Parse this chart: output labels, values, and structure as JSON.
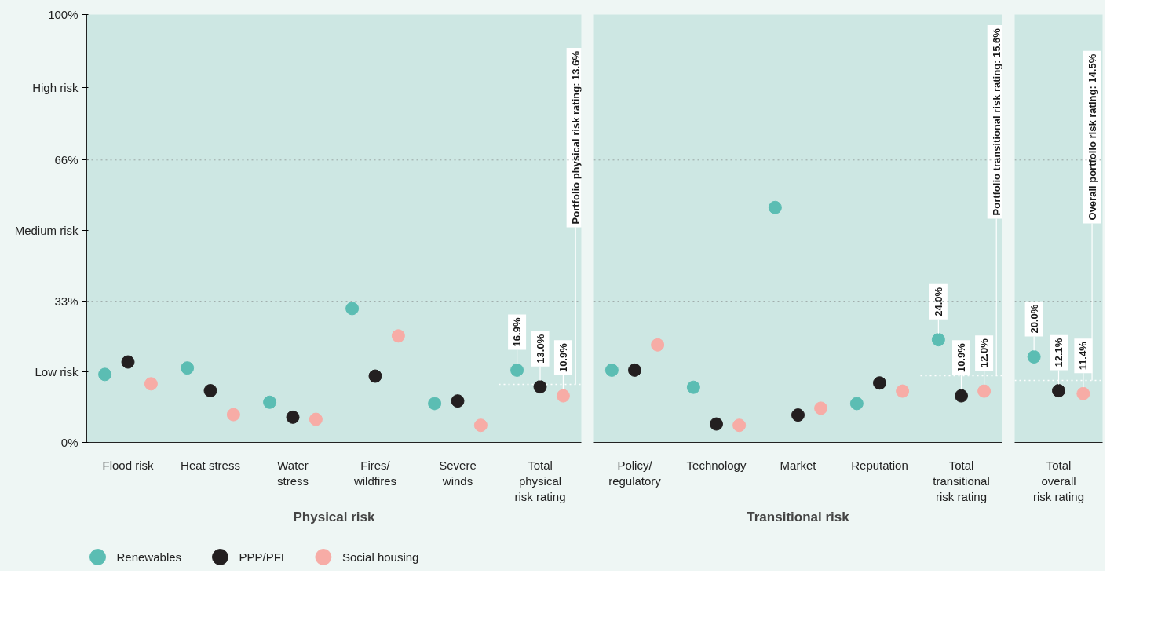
{
  "chart_data": [
    {
      "type": "scatter",
      "xlabel": "Physical risk",
      "categories": [
        "Flood risk",
        "Heat stress",
        "Water stress",
        "Fires/ wildfires",
        "Severe winds",
        "Total physical risk rating"
      ],
      "series": [
        {
          "name": "Renewables",
          "color": "#5bbdb3",
          "values": [
            15.9,
            17.4,
            9.4,
            31.3,
            9.1,
            16.9
          ],
          "value_labels": [
            null,
            null,
            null,
            null,
            null,
            "16.9%"
          ]
        },
        {
          "name": "PPP/PFI",
          "color": "#231f20",
          "values": [
            18.8,
            12.1,
            5.9,
            15.5,
            9.7,
            13.0
          ],
          "value_labels": [
            null,
            null,
            null,
            null,
            null,
            "13.0%"
          ]
        },
        {
          "name": "Social housing",
          "color": "#f7aca6",
          "values": [
            13.7,
            6.5,
            5.4,
            24.9,
            4.0,
            10.9
          ],
          "value_labels": [
            null,
            null,
            null,
            null,
            null,
            "10.9%"
          ]
        }
      ],
      "ylim": [
        0,
        100
      ],
      "yticks": [
        {
          "value": 0,
          "label": "0%"
        },
        {
          "value": 33,
          "label": "33%"
        },
        {
          "value": 66,
          "label": "66%"
        },
        {
          "value": 100,
          "label": "100%"
        },
        {
          "value": 16.5,
          "label": "Low risk"
        },
        {
          "value": 49.5,
          "label": "Medium risk"
        },
        {
          "value": 83,
          "label": "High risk"
        }
      ],
      "ref_lines": [
        {
          "axis": "y",
          "value": 33,
          "color": "#9aa5a3",
          "line_style": "dotted"
        },
        {
          "axis": "y",
          "value": 66,
          "color": "#9aa5a3",
          "line_style": "dotted"
        },
        {
          "axis": "y",
          "value": 13.6,
          "label": "Portfolio physical risk rating: 13.6%",
          "color": "#ffffff",
          "line_style": "dotted"
        }
      ],
      "marker": "circle",
      "legend": "bottom"
    },
    {
      "type": "scatter",
      "xlabel": "Transitional risk",
      "categories": [
        "Policy/ regulatory",
        "Technology",
        "Market",
        "Reputation",
        "Total transitional risk rating"
      ],
      "series": [
        {
          "color": "#5bbdb3",
          "values": [
            16.9,
            12.9,
            54.9,
            9.1,
            24.0
          ],
          "value_labels": [
            null,
            null,
            null,
            null,
            "24.0%"
          ]
        },
        {
          "color": "#231f20",
          "values": [
            16.9,
            4.3,
            6.4,
            13.9,
            10.9
          ],
          "value_labels": [
            null,
            null,
            null,
            null,
            "10.9%"
          ]
        },
        {
          "color": "#f7aca6",
          "values": [
            22.8,
            4.0,
            8.0,
            12.0,
            12.0
          ],
          "value_labels": [
            null,
            null,
            null,
            null,
            "12.0%"
          ]
        }
      ],
      "ylim": [
        0,
        100
      ],
      "tick_labels": "x",
      "ref_lines": [
        {
          "axis": "y",
          "value": 33,
          "color": "#9aa5a3",
          "line_style": "dotted"
        },
        {
          "axis": "y",
          "value": 66,
          "color": "#9aa5a3",
          "line_style": "dotted"
        },
        {
          "axis": "y",
          "value": 15.6,
          "label": "Portfolio transitional risk rating: 15.6%",
          "color": "#ffffff",
          "line_style": "dotted"
        }
      ],
      "marker": "circle"
    },
    {
      "type": "scatter",
      "categories": [
        "Total overall risk rating"
      ],
      "series": [
        {
          "color": "#5bbdb3",
          "values": [
            20.0
          ],
          "value_labels": [
            "20.0%"
          ]
        },
        {
          "color": "#231f20",
          "values": [
            12.1
          ],
          "value_labels": [
            "12.1%"
          ]
        },
        {
          "color": "#f7aca6",
          "values": [
            11.4
          ],
          "value_labels": [
            "11.4%"
          ]
        }
      ],
      "ylim": [
        0,
        100
      ],
      "tick_labels": "x",
      "ref_lines": [
        {
          "axis": "y",
          "value": 33,
          "color": "#9aa5a3",
          "line_style": "dotted"
        },
        {
          "axis": "y",
          "value": 66,
          "color": "#9aa5a3",
          "line_style": "dotted"
        },
        {
          "axis": "y",
          "value": 14.5,
          "label": "Overall portfolio risk rating: 14.5%",
          "color": "#ffffff",
          "line_style": "dotted"
        }
      ],
      "marker": "circle"
    }
  ]
}
